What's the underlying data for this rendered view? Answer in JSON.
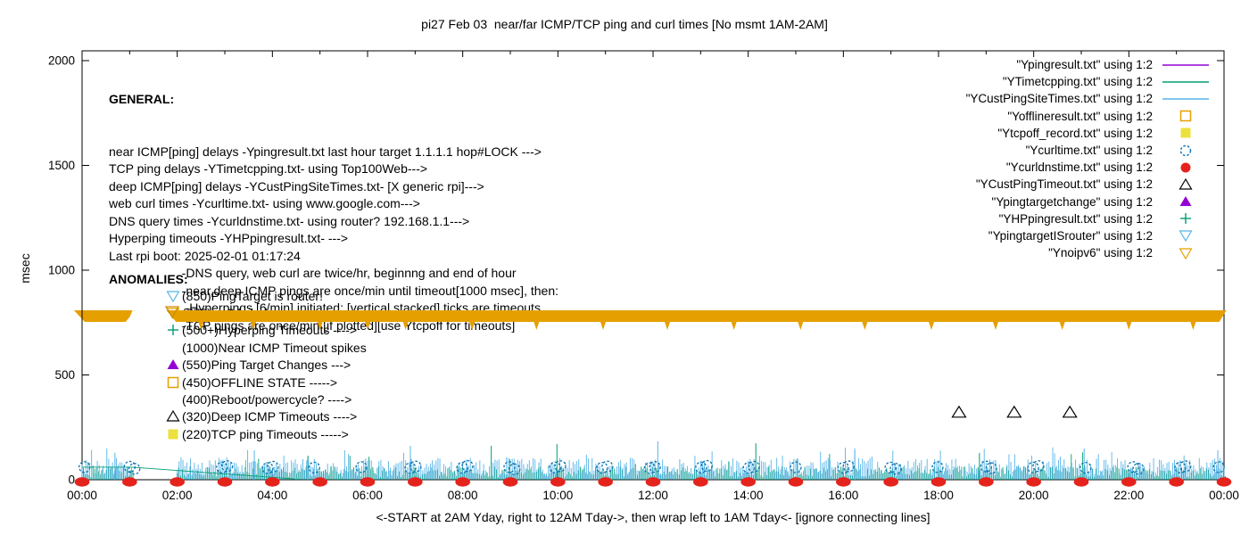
{
  "title": "pi27 Feb 03  near/far ICMP/TCP ping and curl times [No msmt 1AM-2AM]",
  "colors": {
    "purple": "#9400d3",
    "teal": "#009e73",
    "lightblue": "#56b4e9",
    "orange": "#e69f00",
    "yellow": "#ece13c",
    "blue": "#0b73b2",
    "red": "#e4231c",
    "black": "#000000",
    "band": "#e5a000"
  },
  "general": {
    "heading": "GENERAL:",
    "lines": [
      "near ICMP[ping] delays -Ypingresult.txt last hour target 1.1.1.1 hop#LOCK --->",
      "TCP ping delays -YTimetcpping.txt- using Top100Web--->",
      "deep ICMP[ping] delays -YCustPingSiteTimes.txt- [X generic rpi]--->",
      "web curl times -Ycurltime.txt- using www.google.com--->",
      "DNS query times -Ycurldnstime.txt- using router? 192.168.1.1--->",
      "Hyperping timeouts -YHPpingresult.txt- --->",
      "Last rpi boot: 2025-02-01 01:17:24",
      "                     -DNS query, web curl are twice/hr, beginnng and end of hour",
      "                     -near,deep ICMP pings are once/min until timeout[1000 msec], then:",
      "                      -Hyperpings [6/min] initiated; [vertical stacked] ticks are timeouts",
      "                     -TCP pings are once/min [if plotted][use Ytcpoff for timeouts]"
    ]
  },
  "anomalies": {
    "heading": "ANOMALIES:",
    "rows": [
      {
        "marker": "inv-tri-open",
        "color": "lightblue",
        "text": "(850)PingTarget is router!"
      },
      {
        "marker": "inv-tri-open",
        "color": "orange",
        "text": "(775)ipv6 failed --->"
      },
      {
        "marker": "plus",
        "color": "teal",
        "text": "(500+)Hyperping Timeouts ---->"
      },
      {
        "marker": "none",
        "color": "black",
        "text": "(1000)Near ICMP Timeout spikes"
      },
      {
        "marker": "tri-filled",
        "color": "purple",
        "text": "(550)Ping Target Changes --->"
      },
      {
        "marker": "square-open",
        "color": "orange",
        "text": "(450)OFFLINE STATE ----->"
      },
      {
        "marker": "none",
        "color": "black",
        "text": "(400)Reboot/powercycle? ---->"
      },
      {
        "marker": "tri-open",
        "color": "black",
        "text": "(320)Deep ICMP Timeouts ---->"
      },
      {
        "marker": "square-filled",
        "color": "yellow",
        "text": "(220)TCP ping Timeouts ----->"
      }
    ]
  },
  "legend": {
    "entries": [
      {
        "label": "\"Ypingresult.txt\" using 1:2",
        "marker": "line",
        "color": "purple"
      },
      {
        "label": "\"YTimetcpping.txt\" using 1:2",
        "marker": "line",
        "color": "teal"
      },
      {
        "label": "\"YCustPingSiteTimes.txt\" using 1:2",
        "marker": "line",
        "color": "lightblue"
      },
      {
        "label": "\"Yofflineresult.txt\" using 1:2",
        "marker": "square-open",
        "color": "orange"
      },
      {
        "label": "\"Ytcpoff_record.txt\" using 1:2",
        "marker": "square-filled",
        "color": "yellow"
      },
      {
        "label": "\"Ycurltime.txt\" using 1:2",
        "marker": "circle-open",
        "color": "blue"
      },
      {
        "label": "\"Ycurldnstime.txt\" using 1:2",
        "marker": "circle-filled",
        "color": "red"
      },
      {
        "label": "\"YCustPingTimeout.txt\" using 1:2",
        "marker": "tri-open",
        "color": "black"
      },
      {
        "label": "\"Ypingtargetchange\" using 1:2",
        "marker": "tri-filled",
        "color": "purple"
      },
      {
        "label": "\"YHPpingresult.txt\" using 1:2",
        "marker": "plus",
        "color": "teal"
      },
      {
        "label": "\"YpingtargetISrouter\" using 1:2",
        "marker": "inv-tri-open",
        "color": "lightblue"
      },
      {
        "label": "\"Ynoipv6\" using 1:2",
        "marker": "inv-tri-open",
        "color": "orange"
      }
    ]
  },
  "chart_data": {
    "type": "line",
    "title": "pi27 Feb 03  near/far ICMP/TCP ping and curl times [No msmt 1AM-2AM]",
    "xlabel": "<-START at 2AM Yday, right to 12AM Tday->, then wrap left to 1AM Tday<- [ignore connecting lines]",
    "ylabel": "msec",
    "x_tick_labels": [
      "00:00",
      "02:00",
      "04:00",
      "06:00",
      "08:00",
      "10:00",
      "12:00",
      "14:00",
      "16:00",
      "18:00",
      "20:00",
      "22:00",
      "00:00"
    ],
    "x_range_hours": [
      0,
      24
    ],
    "y_ticks": [
      0,
      500,
      1000,
      1500,
      2000
    ],
    "ylim": [
      0,
      2000
    ],
    "grid": false,
    "legend_position": "top-right",
    "no_measurement_gap_hours": [
      1.05,
      2.0
    ],
    "noipv6_band": {
      "value_msec": 775,
      "segments_hours": [
        [
          -0.17,
          1.12
        ],
        [
          1.77,
          24.05
        ]
      ],
      "tick_hours": [
        2.5,
        3.6,
        5.0,
        6.0,
        6.8,
        8.2,
        9.55,
        10.95,
        12.3,
        13.7,
        15.1,
        16.45,
        17.85,
        19.2,
        20.6,
        22.0,
        23.35
      ]
    },
    "deep_icmp_timeouts": {
      "value_msec": 320,
      "hours": [
        18.43,
        19.59,
        20.76
      ]
    },
    "dns_query_dots": {
      "value_msec": 0,
      "hours": [
        0,
        1,
        2,
        3,
        4,
        5,
        6,
        7,
        8,
        9,
        10,
        11,
        12,
        13,
        14,
        15,
        16,
        17,
        18,
        19,
        20,
        21,
        22,
        23,
        24
      ]
    },
    "web_curl_circles": {
      "points_h_msec": [
        [
          0.05,
          60
        ],
        [
          1.0,
          62
        ],
        [
          1.1,
          52
        ],
        [
          2.94,
          58
        ],
        [
          3.05,
          65
        ],
        [
          3.9,
          55
        ],
        [
          4.01,
          62
        ],
        [
          4.88,
          58
        ],
        [
          5.87,
          60
        ],
        [
          6.9,
          55
        ],
        [
          7.01,
          63
        ],
        [
          7.99,
          57
        ],
        [
          8.1,
          66
        ],
        [
          8.98,
          60
        ],
        [
          9.09,
          50
        ],
        [
          9.94,
          58
        ],
        [
          10.05,
          65
        ],
        [
          10.93,
          57
        ],
        [
          11.04,
          63
        ],
        [
          11.93,
          55
        ],
        [
          12.04,
          61
        ],
        [
          13.01,
          58
        ],
        [
          13.13,
          66
        ],
        [
          14.01,
          56
        ],
        [
          14.12,
          62
        ],
        [
          15.0,
          59
        ],
        [
          16.0,
          57
        ],
        [
          16.11,
          64
        ],
        [
          16.99,
          58
        ],
        [
          17.1,
          52
        ],
        [
          17.98,
          60
        ],
        [
          19.0,
          63
        ],
        [
          19.11,
          55
        ],
        [
          19.99,
          58
        ],
        [
          20.1,
          65
        ],
        [
          21.09,
          57
        ],
        [
          22.09,
          60
        ],
        [
          22.2,
          52
        ],
        [
          23.08,
          58
        ],
        [
          23.19,
          64
        ],
        [
          23.89,
          60
        ]
      ]
    },
    "tall_spikes_h_msec": [
      [
        0.69,
        128,
        "lightblue"
      ],
      [
        3.62,
        140,
        "lightblue"
      ],
      [
        4.74,
        110,
        "lightblue"
      ],
      [
        6.9,
        162,
        "lightblue"
      ],
      [
        8.6,
        162,
        "teal"
      ],
      [
        9.98,
        170,
        "teal"
      ],
      [
        12.1,
        183,
        "lightblue"
      ],
      [
        14.16,
        174,
        "teal"
      ],
      [
        16.24,
        140,
        "lightblue"
      ],
      [
        18.86,
        128,
        "teal"
      ],
      [
        21.06,
        149,
        "lightblue"
      ],
      [
        23.87,
        140,
        "lightblue"
      ]
    ],
    "connector_lines_h_msec": [
      [
        0,
        60,
        1.05,
        60
      ],
      [
        1.05,
        60,
        4.46,
        4
      ]
    ],
    "baseline_noise": {
      "description": "per-minute near/deep ICMP and TCP ping times, ~5-95 msec",
      "seed": 42,
      "step_hours": 0.04,
      "lightblue_max_msec": 95,
      "green_max_msec": 60
    }
  }
}
